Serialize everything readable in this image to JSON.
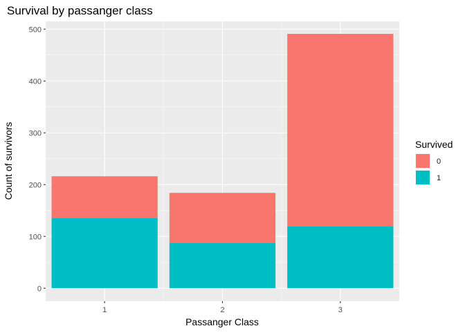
{
  "chart_data": {
    "type": "bar",
    "stacked": true,
    "title": "Survival by passanger class",
    "xlabel": "Passanger Class",
    "ylabel": "Count of survivors",
    "categories": [
      "1",
      "2",
      "3"
    ],
    "series": [
      {
        "name": "0",
        "values": [
          80,
          97,
          372
        ],
        "color": "#F8766D"
      },
      {
        "name": "1",
        "values": [
          136,
          87,
          119
        ],
        "color": "#00BFC4"
      }
    ],
    "ylim": [
      -25,
      515
    ],
    "yticks": [
      0,
      100,
      200,
      300,
      400,
      500
    ],
    "grid": true,
    "panel_background": "#EBEBEB",
    "legend": {
      "title": "Survived",
      "position": "right",
      "entries": [
        "0",
        "1"
      ]
    }
  }
}
